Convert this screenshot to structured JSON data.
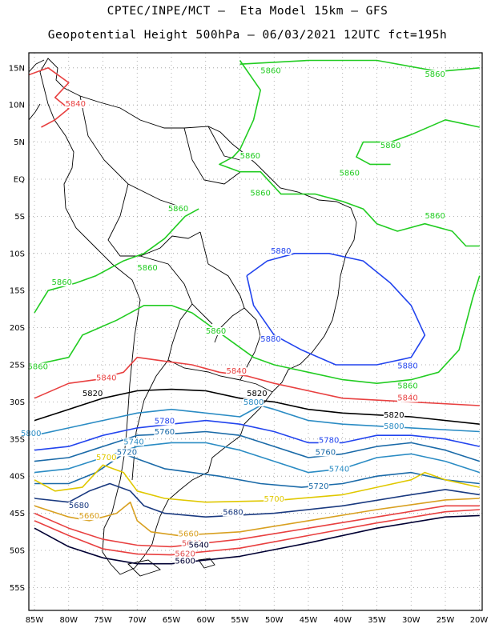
{
  "title_line1": "CPTEC/INPE/MCT –  Eta Model 15km – GFS",
  "title_line2": "Geopotential Height 500hPa – 06/03/2021 12UTC fct=195h",
  "lat_labels": [
    "15N",
    "10N",
    "5N",
    "EQ",
    "5S",
    "10S",
    "15S",
    "20S",
    "25S",
    "30S",
    "35S",
    "40S",
    "45S",
    "50S",
    "55S"
  ],
  "lon_labels": [
    "85W",
    "80W",
    "75W",
    "70W",
    "65W",
    "60W",
    "55W",
    "50W",
    "45W",
    "40W",
    "35W",
    "30W",
    "25W",
    "20W"
  ],
  "contour_labels": [
    {
      "text": "5860",
      "color": "#22cc22",
      "lon": -50.5,
      "lat": 14.3
    },
    {
      "text": "5860",
      "color": "#22cc22",
      "lon": -26.5,
      "lat": 13.8
    },
    {
      "text": "5840",
      "color": "#e84040",
      "lon": -79,
      "lat": 9.8
    },
    {
      "text": "5860",
      "color": "#22cc22",
      "lon": -33,
      "lat": 4.2
    },
    {
      "text": "5860",
      "color": "#22cc22",
      "lon": -53.5,
      "lat": 2.8
    },
    {
      "text": "5860",
      "color": "#22cc22",
      "lon": -39,
      "lat": 0.5
    },
    {
      "text": "5860",
      "color": "#22cc22",
      "lon": -52,
      "lat": -2.2
    },
    {
      "text": "5860",
      "color": "#22cc22",
      "lon": -64,
      "lat": -4.3
    },
    {
      "text": "5860",
      "color": "#22cc22",
      "lon": -26.5,
      "lat": -5.3
    },
    {
      "text": "5880",
      "color": "#2244ee",
      "lon": -49,
      "lat": -10
    },
    {
      "text": "5860",
      "color": "#22cc22",
      "lon": -68.5,
      "lat": -12.3
    },
    {
      "text": "5860",
      "color": "#22cc22",
      "lon": -81,
      "lat": -14.2
    },
    {
      "text": "5860",
      "color": "#22cc22",
      "lon": -58.5,
      "lat": -20.8
    },
    {
      "text": "5880",
      "color": "#2244ee",
      "lon": -50.5,
      "lat": -21.9
    },
    {
      "text": "5860",
      "color": "#22cc22",
      "lon": -84.5,
      "lat": -25.6
    },
    {
      "text": "5880",
      "color": "#2244ee",
      "lon": -30.5,
      "lat": -25.5
    },
    {
      "text": "5840",
      "color": "#e84040",
      "lon": -74.5,
      "lat": -27.1
    },
    {
      "text": "5840",
      "color": "#e84040",
      "lon": -55.5,
      "lat": -26.2
    },
    {
      "text": "5860",
      "color": "#22cc22",
      "lon": -30.5,
      "lat": -28.2
    },
    {
      "text": "5820",
      "color": "#000000",
      "lon": -76.5,
      "lat": -29.2
    },
    {
      "text": "5820",
      "color": "#000000",
      "lon": -52.5,
      "lat": -29.2
    },
    {
      "text": "5840",
      "color": "#e84040",
      "lon": -30.5,
      "lat": -29.8
    },
    {
      "text": "5800",
      "color": "#2b8cc4",
      "lon": -53,
      "lat": -30.4
    },
    {
      "text": "5820",
      "color": "#000000",
      "lon": -32.5,
      "lat": -32.1
    },
    {
      "text": "5780",
      "color": "#2244ee",
      "lon": -66,
      "lat": -32.9
    },
    {
      "text": "5800",
      "color": "#2b8cc4",
      "lon": -85.5,
      "lat": -34.6
    },
    {
      "text": "5800",
      "color": "#2b8cc4",
      "lon": -32.5,
      "lat": -33.6
    },
    {
      "text": "5760",
      "color": "#1a6aa8",
      "lon": -66,
      "lat": -34.4
    },
    {
      "text": "5740",
      "color": "#2b8cc4",
      "lon": -70.5,
      "lat": -35.7
    },
    {
      "text": "5780",
      "color": "#2244ee",
      "lon": -42,
      "lat": -35.5
    },
    {
      "text": "5720",
      "color": "#1a6aa8",
      "lon": -71.5,
      "lat": -37.1
    },
    {
      "text": "5760",
      "color": "#1a6aa8",
      "lon": -42.5,
      "lat": -37.1
    },
    {
      "text": "5700",
      "color": "#e0c800",
      "lon": -74.5,
      "lat": -37.8
    },
    {
      "text": "5740",
      "color": "#2b8cc4",
      "lon": -40.5,
      "lat": -39.4
    },
    {
      "text": "5720",
      "color": "#1a6aa8",
      "lon": -43.5,
      "lat": -41.7
    },
    {
      "text": "5700",
      "color": "#e0c800",
      "lon": -50,
      "lat": -43.4
    },
    {
      "text": "5680",
      "color": "#1a3a80",
      "lon": -78.5,
      "lat": -44.3
    },
    {
      "text": "5680",
      "color": "#1a3a80",
      "lon": -56,
      "lat": -45.2
    },
    {
      "text": "5660",
      "color": "#d8a020",
      "lon": -77,
      "lat": -45.7
    },
    {
      "text": "5660",
      "color": "#d8a020",
      "lon": -62.5,
      "lat": -48.1
    },
    {
      "text": "5640",
      "color": "#e05050",
      "lon": -62,
      "lat": -49.4
    },
    {
      "text": "5620",
      "color": "#e05050",
      "lon": -63,
      "lat": -50.8
    },
    {
      "text": "5640",
      "color": "#000033",
      "lon": -61,
      "lat": -49.6
    },
    {
      "text": "5600",
      "color": "#000033",
      "lon": -63,
      "lat": -51.8
    }
  ],
  "colors": {
    "green": "#22cc22",
    "blue": "#2244ee",
    "red": "#e84040",
    "black": "#000000",
    "light_blue": "#2b8cc4",
    "steel_blue": "#1a6aa8",
    "yellow": "#e0c800",
    "navy": "#1a3a80",
    "orange": "#d8a020",
    "dark_navy": "#000033",
    "grid": "#999999"
  }
}
